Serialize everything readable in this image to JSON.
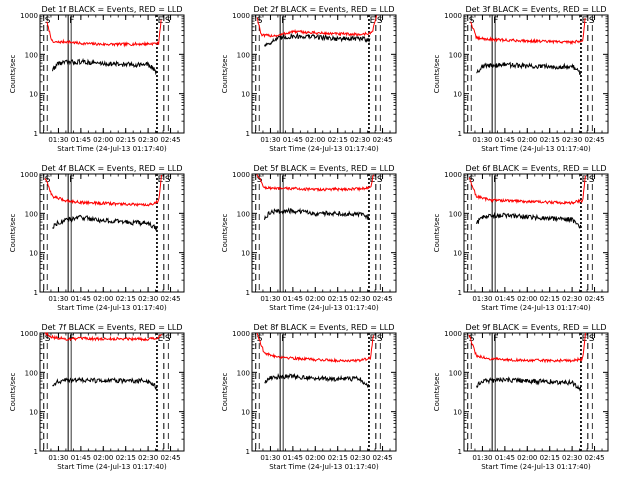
{
  "chart_data": {
    "type": "line",
    "ylabel": "Counts/sec",
    "xlabel": "Start Time (24-Jul-13 01:17:40)",
    "yscale": "log",
    "ylim": [
      1,
      1000
    ],
    "ytick_values": [
      1,
      10,
      100,
      1000
    ],
    "ytick_labels": [
      "1",
      "10",
      "100",
      "1000"
    ],
    "xlim": [
      "01:17:40",
      "02:54:00"
    ],
    "xtick_labels": [
      "01:30",
      "01:45",
      "02:00",
      "02:15",
      "02:30",
      "02:45"
    ],
    "xtick_times": [
      "01:30",
      "01:45",
      "02:00",
      "02:15",
      "02:30",
      "02:45"
    ],
    "marker_labels": [
      "S",
      "F",
      "E",
      "S"
    ],
    "marker_times": [
      "01:20:10",
      "01:36:30",
      "02:35:40",
      "02:40:30"
    ],
    "series_colors": {
      "events": "#000000",
      "lld": "#ff0000"
    },
    "legend": "in title",
    "panels": [
      {
        "title": "Det 1f BLACK = Events, RED = LLD",
        "series": [
          {
            "name": "LLD",
            "color": "#ff0000",
            "x": [
              "01:22",
              "01:26",
              "01:35",
              "01:45",
              "02:00",
              "02:15",
              "02:30",
              "02:37",
              "02:39"
            ],
            "values": [
              700,
              200,
              210,
              190,
              180,
              180,
              185,
              190,
              1000
            ]
          },
          {
            "name": "Events",
            "color": "#000000",
            "x": [
              "01:26",
              "01:30",
              "01:45",
              "02:00",
              "02:15",
              "02:30",
              "02:36"
            ],
            "values": [
              40,
              60,
              65,
              58,
              55,
              55,
              35
            ]
          }
        ]
      },
      {
        "title": "Det 2f BLACK = Events, RED = LLD",
        "series": [
          {
            "name": "LLD",
            "color": "#ff0000",
            "x": [
              "01:21",
              "01:24",
              "01:35",
              "01:45",
              "02:00",
              "02:15",
              "02:30",
              "02:38",
              "02:41"
            ],
            "values": [
              900,
              300,
              300,
              380,
              350,
              330,
              320,
              350,
              1000
            ]
          },
          {
            "name": "Events",
            "color": "#000000",
            "x": [
              "01:26",
              "01:35",
              "01:45",
              "02:00",
              "02:15",
              "02:30",
              "02:37"
            ],
            "values": [
              170,
              250,
              290,
              280,
              250,
              250,
              240
            ]
          }
        ]
      },
      {
        "title": "Det 3f BLACK = Events, RED = LLD",
        "series": [
          {
            "name": "LLD",
            "color": "#ff0000",
            "x": [
              "01:22",
              "01:26",
              "01:35",
              "01:45",
              "02:00",
              "02:15",
              "02:30",
              "02:37",
              "02:39"
            ],
            "values": [
              700,
              260,
              240,
              230,
              220,
              210,
              205,
              220,
              1000
            ]
          },
          {
            "name": "Events",
            "color": "#000000",
            "x": [
              "01:26",
              "01:30",
              "01:45",
              "02:00",
              "02:15",
              "02:30",
              "02:36"
            ],
            "values": [
              35,
              50,
              55,
              50,
              48,
              50,
              32
            ]
          }
        ]
      },
      {
        "title": "Det 4f BLACK = Events, RED = LLD",
        "series": [
          {
            "name": "LLD",
            "color": "#ff0000",
            "x": [
              "01:21",
              "01:26",
              "01:35",
              "01:45",
              "02:00",
              "02:15",
              "02:30",
              "02:37",
              "02:39"
            ],
            "values": [
              800,
              270,
              210,
              190,
              180,
              170,
              160,
              200,
              1000
            ]
          },
          {
            "name": "Events",
            "color": "#000000",
            "x": [
              "01:26",
              "01:30",
              "01:45",
              "02:00",
              "02:15",
              "02:30",
              "02:36"
            ],
            "values": [
              45,
              60,
              80,
              65,
              60,
              55,
              40
            ]
          }
        ]
      },
      {
        "title": "Det 5f BLACK = Events, RED = LLD",
        "series": [
          {
            "name": "LLD",
            "color": "#ff0000",
            "x": [
              "01:21",
              "01:26",
              "01:35",
              "01:45",
              "02:00",
              "02:15",
              "02:30",
              "02:37",
              "02:39"
            ],
            "values": [
              1000,
              450,
              420,
              430,
              400,
              410,
              420,
              450,
              1000
            ]
          },
          {
            "name": "Events",
            "color": "#000000",
            "x": [
              "01:26",
              "01:30",
              "01:45",
              "02:00",
              "02:15",
              "02:30",
              "02:36"
            ],
            "values": [
              70,
              110,
              115,
              100,
              100,
              95,
              75
            ]
          }
        ]
      },
      {
        "title": "Det 6f BLACK = Events, RED = LLD",
        "series": [
          {
            "name": "LLD",
            "color": "#ff0000",
            "x": [
              "01:21",
              "01:26",
              "01:35",
              "01:45",
              "02:00",
              "02:15",
              "02:30",
              "02:37",
              "02:39"
            ],
            "values": [
              800,
              270,
              220,
              210,
              200,
              190,
              185,
              210,
              1000
            ]
          },
          {
            "name": "Events",
            "color": "#000000",
            "x": [
              "01:26",
              "01:30",
              "01:45",
              "02:00",
              "02:15",
              "02:30",
              "02:36"
            ],
            "values": [
              55,
              80,
              90,
              80,
              75,
              70,
              45
            ]
          }
        ]
      },
      {
        "title": "Det 7f BLACK = Events, RED = LLD",
        "series": [
          {
            "name": "LLD",
            "color": "#ff0000",
            "x": [
              "01:21",
              "01:26",
              "01:35",
              "01:45",
              "02:00",
              "02:15",
              "02:30",
              "02:37",
              "02:39"
            ],
            "values": [
              1000,
              780,
              700,
              720,
              700,
              720,
              700,
              760,
              1000
            ]
          },
          {
            "name": "Events",
            "color": "#000000",
            "x": [
              "01:26",
              "01:30",
              "01:45",
              "02:00",
              "02:15",
              "02:30",
              "02:36"
            ],
            "values": [
              45,
              60,
              65,
              60,
              62,
              60,
              40
            ]
          }
        ]
      },
      {
        "title": "Det 8f BLACK = Events, RED = LLD",
        "series": [
          {
            "name": "LLD",
            "color": "#ff0000",
            "x": [
              "01:21",
              "01:26",
              "01:35",
              "01:45",
              "02:00",
              "02:15",
              "02:30",
              "02:37",
              "02:39"
            ],
            "values": [
              1000,
              300,
              250,
              230,
              210,
              200,
              200,
              230,
              1000
            ]
          },
          {
            "name": "Events",
            "color": "#000000",
            "x": [
              "01:26",
              "01:30",
              "01:45",
              "02:00",
              "02:15",
              "02:30",
              "02:36"
            ],
            "values": [
              55,
              75,
              80,
              70,
              68,
              68,
              45
            ]
          }
        ]
      },
      {
        "title": "Det 9f BLACK = Events, RED = LLD",
        "series": [
          {
            "name": "LLD",
            "color": "#ff0000",
            "x": [
              "01:21",
              "01:26",
              "01:35",
              "01:45",
              "02:00",
              "02:15",
              "02:30",
              "02:37",
              "02:39"
            ],
            "values": [
              900,
              260,
              220,
              210,
              200,
              200,
              200,
              220,
              1000
            ]
          },
          {
            "name": "Events",
            "color": "#000000",
            "x": [
              "01:26",
              "01:30",
              "01:45",
              "02:00",
              "02:15",
              "02:30",
              "02:36"
            ],
            "values": [
              45,
              60,
              65,
              60,
              58,
              55,
              38
            ]
          }
        ]
      }
    ]
  }
}
